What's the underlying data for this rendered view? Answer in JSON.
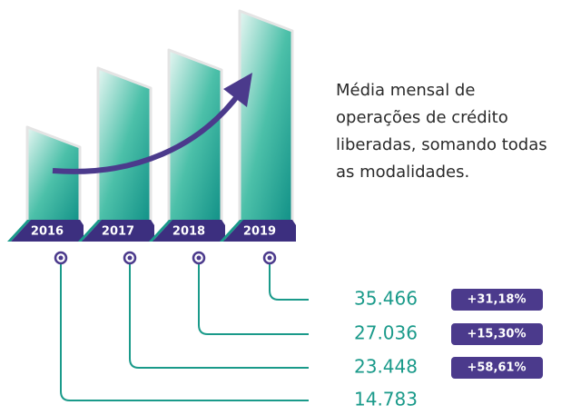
{
  "years": [
    "2016",
    "2017",
    "2018",
    "2019"
  ],
  "description": [
    "Média mensal de",
    "operações de crédito",
    "liberadas, somando todas",
    "as modalidades."
  ],
  "rows": [
    {
      "value": "35.466",
      "change": "+31,18%"
    },
    {
      "value": "27.036",
      "change": "+15,30%"
    },
    {
      "value": "23.448",
      "change": "+58,61%"
    },
    {
      "value": "14.783"
    }
  ]
}
